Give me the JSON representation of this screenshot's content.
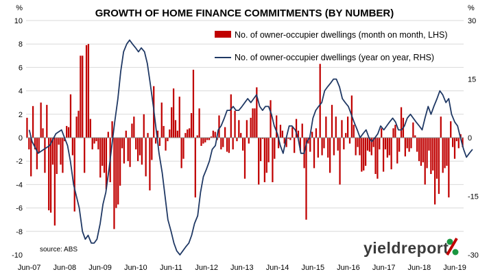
{
  "chart_data": {
    "type": "bar+line",
    "title": "GROWTH OF HOME FINANCE COMMITMENTS (BY NUMBER)",
    "left_unit": "%",
    "right_unit": "%",
    "ylim_left": [
      -10,
      10
    ],
    "ylim_right": [
      -30,
      30
    ],
    "y_ticks_left": [
      10,
      8,
      6,
      4,
      2,
      0,
      -2,
      -4,
      -6,
      -8,
      -10
    ],
    "y_ticks_right": [
      30,
      15,
      0,
      -15,
      -30
    ],
    "x_tick_labels": [
      "Jun-07",
      "Jun-08",
      "Jun-09",
      "Jun-10",
      "Jun-11",
      "Jun-12",
      "Jun-13",
      "Jun-14",
      "Jun-15",
      "Jun-16",
      "Jun-17",
      "Jun-18",
      "Jun-19"
    ],
    "grid": "horizontal at left-axis even values",
    "legend_position": "top-right",
    "series": [
      {
        "name": "No. of owner-occupier dwellings (month on month, LHS)",
        "kind": "bar",
        "axis": "left",
        "color": "#c00000",
        "values": [
          1.7,
          -1.0,
          -3.3,
          2.7,
          -1.0,
          -2.7,
          -1.3,
          3.0,
          0.8,
          -3.0,
          2.8,
          -6.2,
          -6.4,
          -2.3,
          -7.5,
          -3.1,
          -0.6,
          -2.3,
          -3.0,
          -0.3,
          1.0,
          0.9,
          3.7,
          -1.5,
          -6.3,
          1.8,
          2.3,
          7.0,
          7.0,
          -3.0,
          7.9,
          8.0,
          1.6,
          -1.0,
          -0.5,
          -0.3,
          -1.0,
          -3.4,
          -2.4,
          -3.0,
          -4.4,
          0.5,
          -3.8,
          1.4,
          -7.8,
          -6.0,
          -5.7,
          -4.1,
          -0.9,
          -2.2,
          0.6,
          -2.0,
          -2.5,
          1.2,
          1.8,
          -1.0,
          -2.0,
          -1.5,
          -2.3,
          2.0,
          -3.3,
          0.4,
          -4.5,
          -1.9,
          4.4,
          -0.5,
          0.6,
          -0.7,
          3.0,
          1.0,
          -1.1,
          -0.3,
          0.7,
          2.6,
          4.2,
          1.5,
          0.6,
          3.5,
          -2.6,
          -1.8,
          0.4,
          0.7,
          0.8,
          2.1,
          5.8,
          -5.1,
          0.2,
          2.5,
          -0.7,
          -0.5,
          -0.4,
          -0.2,
          -0.2,
          0.1,
          0.6,
          0.5,
          -0.2,
          1.9,
          -1.0,
          -0.8,
          0.9,
          -1.2,
          -1.3,
          3.7,
          -1.0,
          2.3,
          -0.3,
          1.5,
          0.4,
          -1.1,
          -3.5,
          1.5,
          -0.5,
          1.7,
          2.5,
          2.5,
          4.3,
          -4.0,
          -2.0,
          -0.1,
          -3.8,
          -3.0,
          -2.1,
          3.2,
          -3.8,
          -1.8,
          1.9,
          -0.9,
          1.1,
          0.6,
          -0.5,
          -0.8,
          -0.1,
          -0.2,
          0.9,
          -1.3,
          1.6,
          0.6,
          -1.1,
          1.2,
          -2.6,
          -7.0,
          -0.5,
          -1.2,
          0.5,
          -2.6,
          0.8,
          -1.7,
          6.3,
          -1.5,
          -0.9,
          1.8,
          -1.7,
          -3.0,
          2.8,
          -1.5,
          1.8,
          -1.1,
          -4.0,
          1.5,
          -1.0,
          0.4,
          1.8,
          -0.5,
          3.6,
          1.1,
          -1.5,
          -0.8,
          -1.5,
          -2.9,
          -2.8,
          -2.4,
          -1.1,
          -1.2,
          -1.5,
          -0.8,
          -3.1,
          -3.5,
          -1.0,
          0.8,
          -2.9,
          -1.0,
          -1.7,
          -1.5,
          -2.7,
          0.8,
          1.1,
          -2.2,
          -1.2,
          2.6,
          1.7,
          -1.6,
          -0.9,
          -1.2,
          -0.9,
          1.3,
          0.2,
          -1.2,
          -2.0,
          -2.4,
          -2.1,
          -4.0,
          -2.6,
          -1.1,
          -3.1,
          -2.8,
          -5.7,
          -3.5,
          -4.8,
          1.8,
          -3.0,
          -2.6,
          -2.4,
          -5.1,
          1.4,
          -0.8,
          -1.8,
          -0.3,
          -0.9,
          0.3,
          -0.8
        ]
      },
      {
        "name": "No. of owner-occupier dwellings (year on year, RHS)",
        "kind": "line",
        "axis": "right",
        "color": "#1f3864",
        "points": [
          [
            2007.42,
            2
          ],
          [
            2007.5,
            -1
          ],
          [
            2007.67,
            -4
          ],
          [
            2007.83,
            -3
          ],
          [
            2008.0,
            -2
          ],
          [
            2008.17,
            1
          ],
          [
            2008.33,
            2
          ],
          [
            2008.5,
            -2
          ],
          [
            2008.58,
            -6
          ],
          [
            2008.67,
            -12
          ],
          [
            2008.83,
            -18
          ],
          [
            2008.92,
            -24
          ],
          [
            2009.0,
            -26
          ],
          [
            2009.08,
            -25
          ],
          [
            2009.17,
            -27
          ],
          [
            2009.25,
            -27
          ],
          [
            2009.33,
            -26
          ],
          [
            2009.42,
            -22
          ],
          [
            2009.5,
            -17
          ],
          [
            2009.58,
            -14
          ],
          [
            2009.67,
            -8
          ],
          [
            2009.75,
            -2
          ],
          [
            2009.83,
            4
          ],
          [
            2009.92,
            10
          ],
          [
            2010.0,
            17
          ],
          [
            2010.08,
            22
          ],
          [
            2010.17,
            24
          ],
          [
            2010.25,
            25
          ],
          [
            2010.33,
            24
          ],
          [
            2010.42,
            23
          ],
          [
            2010.5,
            22
          ],
          [
            2010.58,
            23
          ],
          [
            2010.67,
            22
          ],
          [
            2010.75,
            19
          ],
          [
            2010.83,
            14
          ],
          [
            2010.92,
            8
          ],
          [
            2011.0,
            2
          ],
          [
            2011.08,
            -4
          ],
          [
            2011.17,
            -9
          ],
          [
            2011.25,
            -15
          ],
          [
            2011.33,
            -21
          ],
          [
            2011.42,
            -24
          ],
          [
            2011.5,
            -27
          ],
          [
            2011.58,
            -29
          ],
          [
            2011.67,
            -30
          ],
          [
            2011.75,
            -29
          ],
          [
            2011.83,
            -28
          ],
          [
            2011.92,
            -27
          ],
          [
            2012.0,
            -25
          ],
          [
            2012.08,
            -22
          ],
          [
            2012.17,
            -20
          ],
          [
            2012.25,
            -14
          ],
          [
            2012.33,
            -10
          ],
          [
            2012.42,
            -8
          ],
          [
            2012.5,
            -6
          ],
          [
            2012.58,
            -3
          ],
          [
            2012.67,
            -2
          ],
          [
            2012.75,
            2
          ],
          [
            2012.83,
            3
          ],
          [
            2012.92,
            5
          ],
          [
            2013.0,
            7
          ],
          [
            2013.08,
            7
          ],
          [
            2013.17,
            8
          ],
          [
            2013.25,
            7
          ],
          [
            2013.33,
            7
          ],
          [
            2013.42,
            8
          ],
          [
            2013.5,
            9
          ],
          [
            2013.58,
            10
          ],
          [
            2013.67,
            9
          ],
          [
            2013.75,
            10
          ],
          [
            2013.83,
            11
          ],
          [
            2013.92,
            8
          ],
          [
            2014.0,
            7
          ],
          [
            2014.08,
            8
          ],
          [
            2014.17,
            8
          ],
          [
            2014.25,
            6
          ],
          [
            2014.33,
            3
          ],
          [
            2014.42,
            1
          ],
          [
            2014.5,
            -2
          ],
          [
            2014.58,
            -4
          ],
          [
            2014.67,
            0
          ],
          [
            2014.75,
            3
          ],
          [
            2014.83,
            3
          ],
          [
            2014.92,
            2
          ],
          [
            2015.0,
            0
          ],
          [
            2015.08,
            -4
          ],
          [
            2015.17,
            -4
          ],
          [
            2015.25,
            -1
          ],
          [
            2015.33,
            0
          ],
          [
            2015.42,
            5
          ],
          [
            2015.5,
            7
          ],
          [
            2015.58,
            8
          ],
          [
            2015.67,
            9
          ],
          [
            2015.75,
            12
          ],
          [
            2015.83,
            13
          ],
          [
            2015.92,
            14
          ],
          [
            2016.0,
            15
          ],
          [
            2016.08,
            15
          ],
          [
            2016.17,
            13
          ],
          [
            2016.25,
            10
          ],
          [
            2016.33,
            9
          ],
          [
            2016.42,
            8
          ],
          [
            2016.5,
            6
          ],
          [
            2016.58,
            4
          ],
          [
            2016.67,
            2
          ],
          [
            2016.75,
            0
          ],
          [
            2016.83,
            1
          ],
          [
            2016.92,
            2
          ],
          [
            2017.0,
            0
          ],
          [
            2017.08,
            -1
          ],
          [
            2017.17,
            0
          ],
          [
            2017.25,
            1
          ],
          [
            2017.33,
            3
          ],
          [
            2017.42,
            2
          ],
          [
            2017.5,
            3
          ],
          [
            2017.58,
            4
          ],
          [
            2017.67,
            5
          ],
          [
            2017.75,
            4
          ],
          [
            2017.83,
            2
          ],
          [
            2017.92,
            2
          ],
          [
            2018.0,
            3
          ],
          [
            2018.08,
            5
          ],
          [
            2018.17,
            6
          ],
          [
            2018.25,
            5
          ],
          [
            2018.33,
            4
          ],
          [
            2018.42,
            3
          ],
          [
            2018.5,
            2
          ],
          [
            2018.58,
            5
          ],
          [
            2018.67,
            8
          ],
          [
            2018.75,
            6
          ],
          [
            2018.83,
            8
          ],
          [
            2018.92,
            10
          ],
          [
            2019.0,
            12
          ],
          [
            2019.08,
            11
          ],
          [
            2019.17,
            9
          ],
          [
            2019.25,
            10
          ],
          [
            2019.33,
            6
          ],
          [
            2019.42,
            4
          ],
          [
            2019.5,
            3
          ],
          [
            2019.58,
            0
          ],
          [
            2019.67,
            -3
          ],
          [
            2019.75,
            -5
          ],
          [
            2019.83,
            -4
          ],
          [
            2019.92,
            -3
          ]
        ]
      }
    ]
  },
  "source": "source: ABS",
  "logo": {
    "text": "yieldreport",
    "symbol": "%"
  }
}
